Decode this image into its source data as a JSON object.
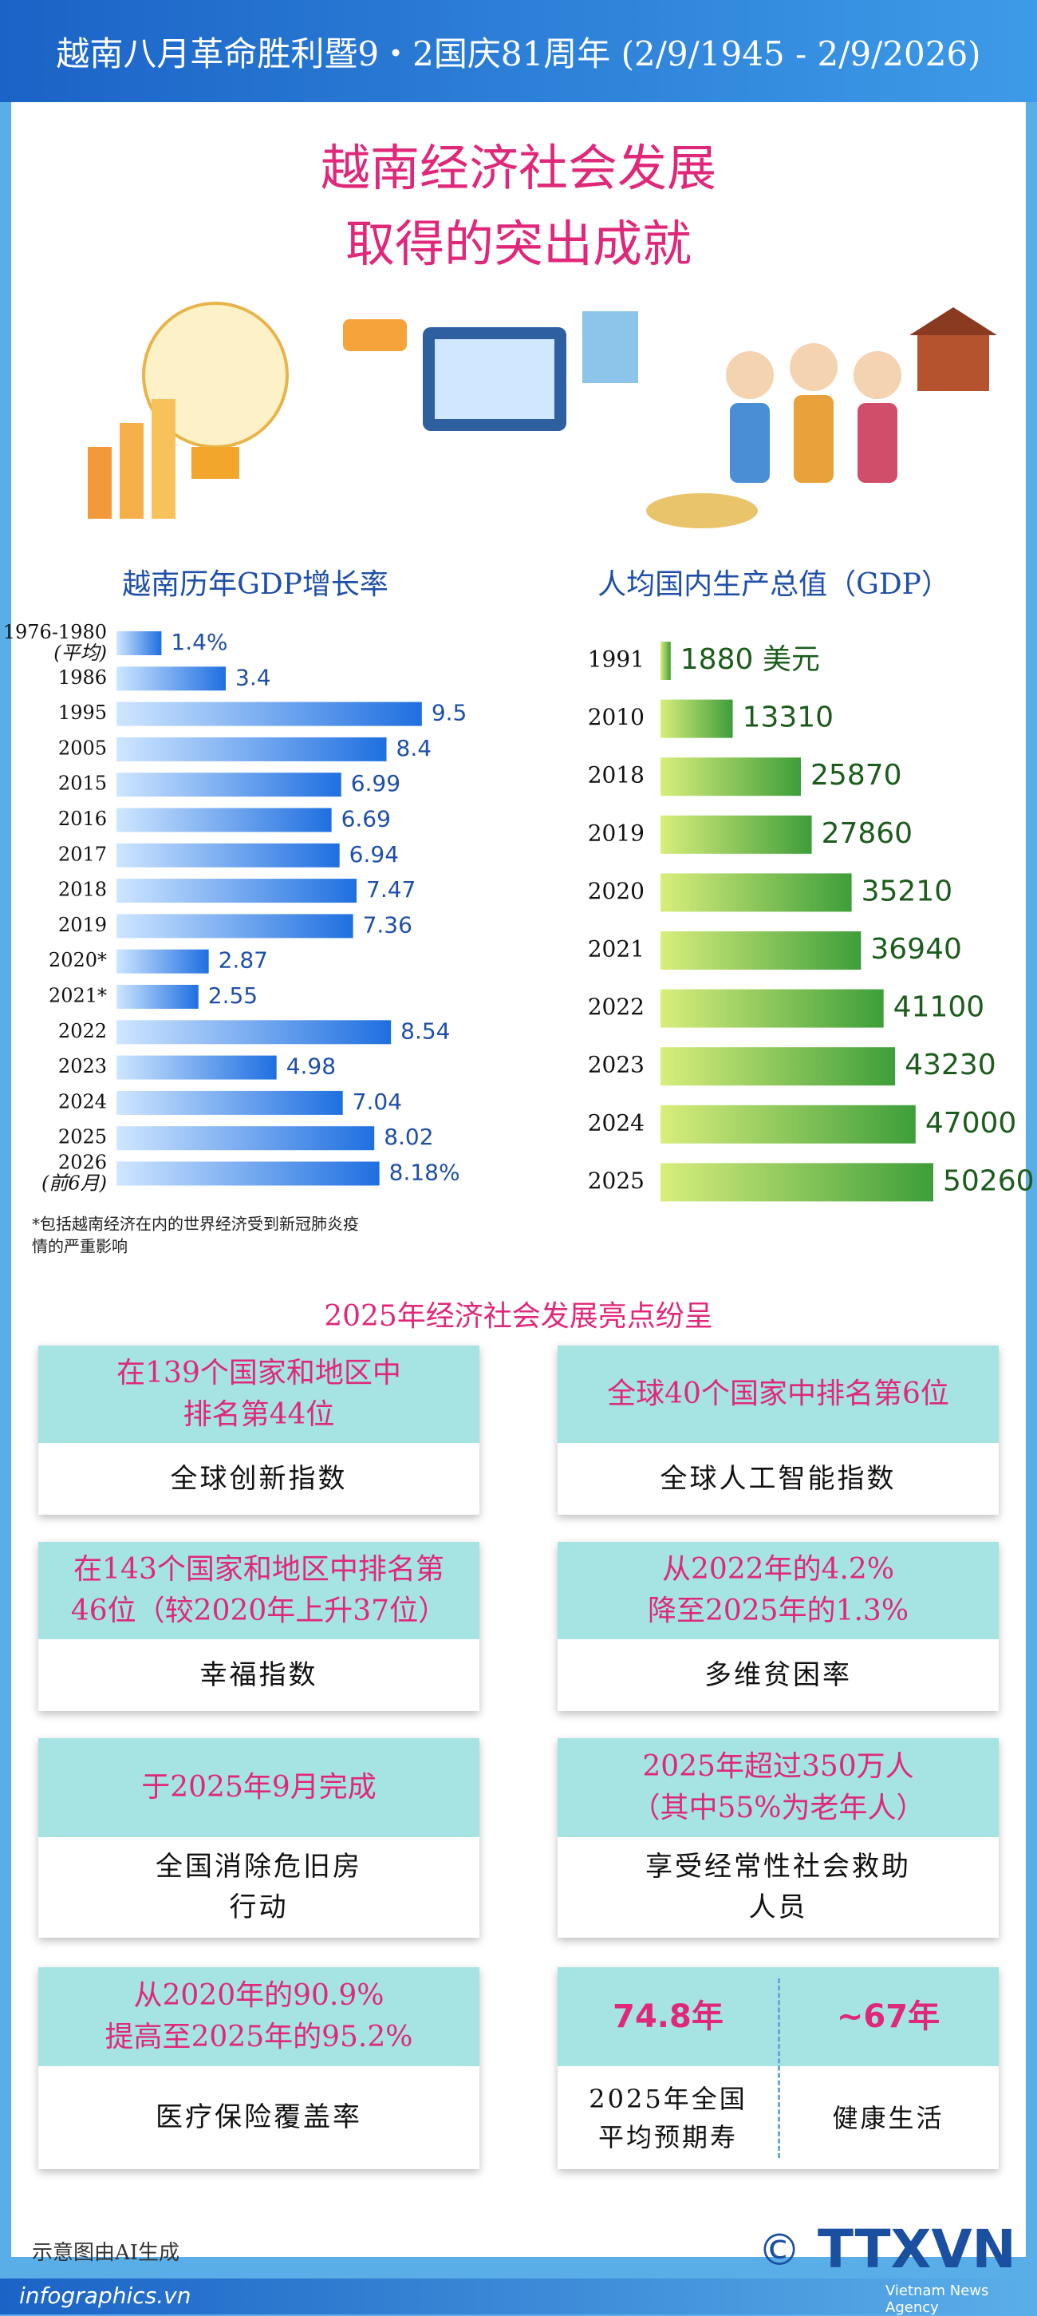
{
  "header": "越南八月革命胜利暨9・2国庆81周年 (2/9/1945 - 2/9/2026)",
  "title": [
    "越南经济社会发展",
    "取得的突出成就"
  ],
  "chart_data": [
    {
      "type": "hbar",
      "title": "越南历年GDP增长率",
      "color": "#1f6fe0",
      "categories": [
        "1976-1980 (平均)",
        "1986",
        "1995",
        "2005",
        "2015",
        "2016",
        "2017",
        "2018",
        "2019",
        "2020*",
        "2021*",
        "2022",
        "2023",
        "2024",
        "2025",
        "2026 (前6月)"
      ],
      "values": [
        1.4,
        3.4,
        9.5,
        8.4,
        6.99,
        6.69,
        6.94,
        7.47,
        7.36,
        2.87,
        2.55,
        8.54,
        4.98,
        7.04,
        8.02,
        8.18
      ],
      "value_labels": [
        "1.4%",
        "3.4",
        "9.5",
        "8.4",
        "6.99",
        "6.69",
        "6.94",
        "7.47",
        "7.36",
        "2.87",
        "2.55",
        "8.54",
        "4.98",
        "7.04",
        "8.02",
        "8.18%"
      ],
      "footnote": [
        "*包括越南经济在内的世界经济受到新冠肺炎疫",
        "情的严重影响"
      ]
    },
    {
      "type": "hbar",
      "title": "人均国内生产总值（GDP）",
      "color": "#3e9e3a",
      "categories": [
        "1991",
        "2010",
        "2018",
        "2019",
        "2020",
        "2021",
        "2022",
        "2023",
        "2024",
        "2025"
      ],
      "values": [
        1880,
        13310,
        25870,
        27860,
        35210,
        36940,
        41100,
        43230,
        47000,
        50260
      ],
      "value_labels": [
        "1880 美元",
        "13310",
        "25870",
        "27860",
        "35210",
        "36940",
        "41100",
        "43230",
        "47000",
        "50260"
      ]
    }
  ],
  "highlights": {
    "title": "2025年经济社会发展亮点纷呈",
    "items": [
      {
        "headline": [
          "在139个国家和地区中",
          "排名第44位"
        ],
        "label": [
          "全球创新指数"
        ]
      },
      {
        "headline": [
          "全球40个国家中排名第6位"
        ],
        "label": [
          "全球人工智能指数"
        ]
      },
      {
        "headline": [
          "在143个国家和地区中排名第",
          "46位（较2020年上升37位）"
        ],
        "label": [
          "幸福指数"
        ]
      },
      {
        "headline": [
          "从2022年的4.2%",
          "降至2025年的1.3%"
        ],
        "label": [
          "多维贫困率"
        ]
      },
      {
        "headline": [
          "于2025年9月完成"
        ],
        "label": [
          "全国消除危旧房",
          "行动"
        ]
      },
      {
        "headline": [
          "2025年超过350万人",
          "（其中55%为老年人）"
        ],
        "label": [
          "享受经常性社会救助",
          "人员"
        ]
      },
      {
        "headline": [
          "从2020年的90.9%",
          "提高至2025年的95.2%"
        ],
        "label": [
          "医疗保险覆盖率"
        ]
      }
    ],
    "life_expectancy": {
      "left": {
        "value_text": "74.8年",
        "label": [
          "2025年全国",
          "平均预期寿"
        ]
      },
      "right": {
        "value_text": "~67年",
        "label": [
          "健康生活"
        ]
      }
    }
  },
  "footer": {
    "note": "示意图由AI生成",
    "site": "infographics.vn",
    "copyright": "©",
    "brand": "TTXVN",
    "brand_sub": "Vietnam News Agency"
  }
}
